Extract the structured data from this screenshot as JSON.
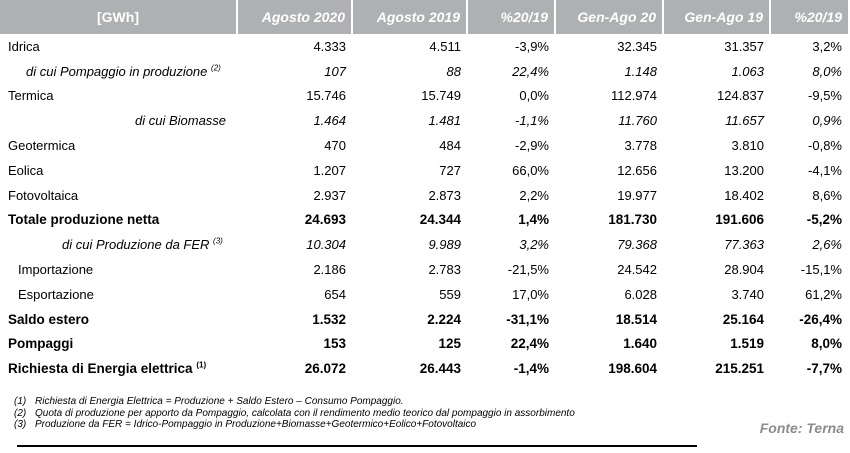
{
  "header": [
    "[GWh]",
    "Agosto 2020",
    "Agosto 2019",
    "%20/19",
    "Gen-Ago 20",
    "Gen-Ago 19",
    "%20/19"
  ],
  "rows": [
    {
      "label": "Idrica",
      "sup": "",
      "v": [
        "4.333",
        "4.511",
        "-3,9%",
        "32.345",
        "31.357",
        "3,2%"
      ]
    },
    {
      "label": "di cui Pompaggio in produzione",
      "sup": "(2)",
      "v": [
        "107",
        "88",
        "22,4%",
        "1.148",
        "1.063",
        "8,0%"
      ]
    },
    {
      "label": "Termica",
      "sup": "",
      "v": [
        "15.746",
        "15.749",
        "0,0%",
        "112.974",
        "124.837",
        "-9,5%"
      ]
    },
    {
      "label": "di cui Biomasse",
      "sup": "",
      "v": [
        "1.464",
        "1.481",
        "-1,1%",
        "11.760",
        "11.657",
        "0,9%"
      ]
    },
    {
      "label": "Geotermica",
      "sup": "",
      "v": [
        "470",
        "484",
        "-2,9%",
        "3.778",
        "3.810",
        "-0,8%"
      ]
    },
    {
      "label": "Eolica",
      "sup": "",
      "v": [
        "1.207",
        "727",
        "66,0%",
        "12.656",
        "13.200",
        "-4,1%"
      ]
    },
    {
      "label": "Fotovoltaica",
      "sup": "",
      "v": [
        "2.937",
        "2.873",
        "2,2%",
        "19.977",
        "18.402",
        "8,6%"
      ]
    },
    {
      "label": "Totale produzione netta",
      "sup": "",
      "v": [
        "24.693",
        "24.344",
        "1,4%",
        "181.730",
        "191.606",
        "-5,2%"
      ]
    },
    {
      "label": "di cui Produzione da FER",
      "sup": "(3)",
      "v": [
        "10.304",
        "9.989",
        "3,2%",
        "79.368",
        "77.363",
        "2,6%"
      ]
    },
    {
      "label": "Importazione",
      "sup": "",
      "v": [
        "2.186",
        "2.783",
        "-21,5%",
        "24.542",
        "28.904",
        "-15,1%"
      ]
    },
    {
      "label": "Esportazione",
      "sup": "",
      "v": [
        "654",
        "559",
        "17,0%",
        "6.028",
        "3.740",
        "61,2%"
      ]
    },
    {
      "label": "Saldo estero",
      "sup": "",
      "v": [
        "1.532",
        "2.224",
        "-31,1%",
        "18.514",
        "25.164",
        "-26,4%"
      ]
    },
    {
      "label": "Pompaggi",
      "sup": "",
      "v": [
        "153",
        "125",
        "22,4%",
        "1.640",
        "1.519",
        "8,0%"
      ]
    },
    {
      "label": "Richiesta di Energia elettrica",
      "sup": "(1)",
      "v": [
        "26.072",
        "26.443",
        "-1,4%",
        "198.604",
        "215.251",
        "-7,7%"
      ]
    }
  ],
  "notes": [
    {
      "num": "(1)",
      "text": "Richiesta di Energia Elettrica = Produzione + Saldo Estero – Consumo Pompaggio."
    },
    {
      "num": "(2)",
      "text": "Quota di produzione per apporto da Pompaggio, calcolata con il rendimento medio teorico dal pompaggio in assorbimento"
    },
    {
      "num": "(3)",
      "text": "Produzione da FER = Idrico-Pompaggio in Produzione+Biomasse+Geotermico+Eolico+Fotovoltaico"
    }
  ],
  "source": "Fonte: Terna"
}
